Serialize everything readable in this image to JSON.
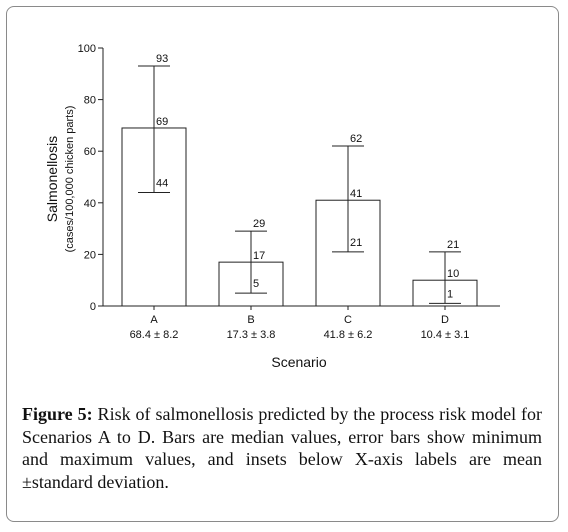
{
  "chart_data": {
    "type": "bar",
    "title": "",
    "xlabel": "Scenario",
    "ylabel": "Salmonellosis",
    "ylabel_sub": "(cases/100,000 chicken parts)",
    "ylim": [
      0,
      100
    ],
    "yticks": [
      "0",
      "20",
      "40",
      "60",
      "80",
      "100"
    ],
    "yticks_values": [
      0,
      20,
      40,
      60,
      80,
      100
    ],
    "grid": false,
    "categories": [
      "A",
      "B",
      "C",
      "D"
    ],
    "values": [
      69,
      17,
      41,
      10
    ],
    "min": [
      44,
      5,
      21,
      1
    ],
    "max": [
      93,
      29,
      62,
      21
    ],
    "value_labels": [
      "69",
      "17",
      "41",
      "10"
    ],
    "min_labels": [
      "44",
      "5",
      "21",
      "1"
    ],
    "max_labels": [
      "93",
      "29",
      "62",
      "21"
    ],
    "mean_sd": [
      "68.4 ± 8.2",
      "17.3 ± 3.8",
      "41.8 ± 6.2",
      "10.4 ± 3.1"
    ],
    "mean": [
      68.4,
      17.3,
      41.8,
      10.4
    ],
    "sd": [
      8.2,
      3.8,
      6.2,
      3.1
    ]
  },
  "caption": {
    "label": "Figure 5:",
    "text": " Risk of salmonellosis predicted by the process risk model for Scenarios A to D. Bars are median values, error bars show minimum and maximum values, and insets below X-axis labels are mean ±standard deviation."
  }
}
